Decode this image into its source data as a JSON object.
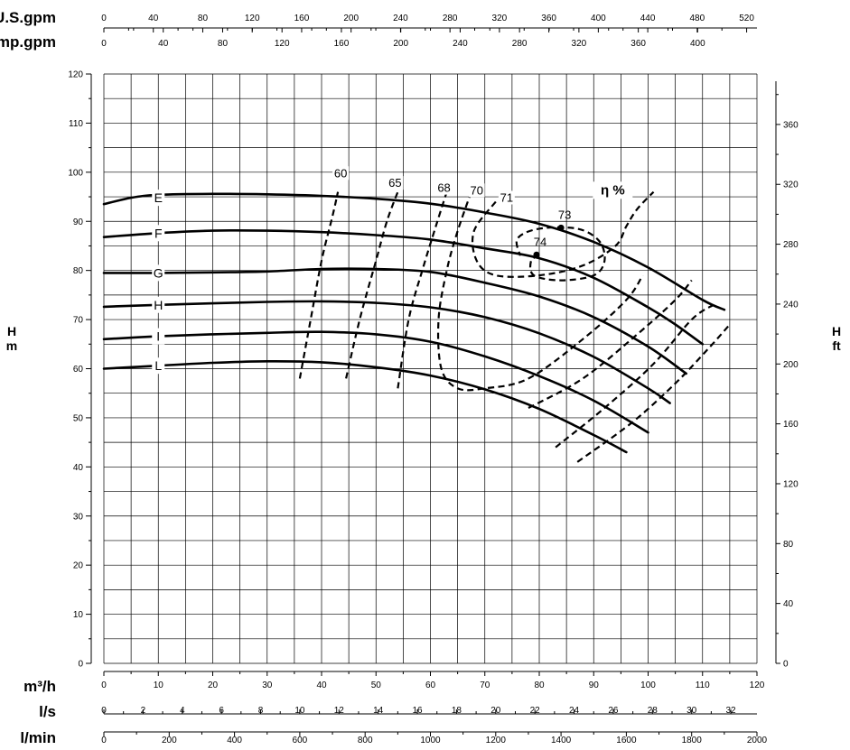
{
  "chart_data": {
    "type": "line",
    "top_axes": [
      {
        "label": "U.S.gpm",
        "ticks": [
          0,
          40,
          80,
          120,
          160,
          200,
          240,
          280,
          320,
          360,
          400,
          440,
          480,
          520
        ],
        "per_m3h": 4.4029
      },
      {
        "label": "Imp.gpm",
        "ticks": [
          0,
          40,
          80,
          120,
          160,
          200,
          240,
          280,
          320,
          360,
          400
        ],
        "per_m3h": 3.6662
      }
    ],
    "x_axes": [
      {
        "label": "m³/h",
        "ticks": [
          0,
          10,
          20,
          30,
          40,
          50,
          60,
          70,
          80,
          90,
          100,
          110,
          120
        ],
        "per_m3h": 1
      },
      {
        "label": "l/s",
        "ticks": [
          0,
          2,
          4,
          6,
          8,
          10,
          12,
          14,
          16,
          18,
          20,
          22,
          24,
          26,
          28,
          30,
          32
        ],
        "per_m3h": 0.27778
      },
      {
        "label": "l/min",
        "ticks": [
          0,
          200,
          400,
          600,
          800,
          1000,
          1200,
          1400,
          1600,
          1800,
          2000
        ],
        "per_m3h": 16.6667
      }
    ],
    "y_left": {
      "label": [
        "H",
        "m"
      ],
      "ticks": [
        0,
        10,
        20,
        30,
        40,
        50,
        60,
        70,
        80,
        90,
        100,
        110,
        120
      ],
      "ylim": [
        0,
        120
      ]
    },
    "y_right": {
      "label": [
        "H",
        "ft"
      ],
      "ticks": [
        0,
        40,
        80,
        120,
        160,
        200,
        240,
        280,
        320,
        360
      ]
    },
    "xlim": [
      0,
      120
    ],
    "series": [
      {
        "name": "E",
        "points": [
          [
            0,
            93.5
          ],
          [
            5,
            94.8
          ],
          [
            10,
            95.4
          ],
          [
            20,
            95.6
          ],
          [
            30,
            95.5
          ],
          [
            40,
            95.2
          ],
          [
            50,
            94.6
          ],
          [
            60,
            93.6
          ],
          [
            70,
            91.8
          ],
          [
            80,
            89.5
          ],
          [
            90,
            85.8
          ],
          [
            100,
            80.6
          ],
          [
            110,
            74
          ],
          [
            114,
            72
          ]
        ]
      },
      {
        "name": "F",
        "points": [
          [
            0,
            86.8
          ],
          [
            10,
            87.6
          ],
          [
            20,
            88.1
          ],
          [
            30,
            88.1
          ],
          [
            40,
            87.8
          ],
          [
            50,
            87.2
          ],
          [
            60,
            86.3
          ],
          [
            70,
            84.5
          ],
          [
            80,
            82.5
          ],
          [
            90,
            78.5
          ],
          [
            100,
            72.5
          ],
          [
            105,
            69
          ],
          [
            110,
            65
          ]
        ]
      },
      {
        "name": "G",
        "points": [
          [
            0,
            79.5
          ],
          [
            10,
            79.5
          ],
          [
            20,
            79.6
          ],
          [
            30,
            79.8
          ],
          [
            40,
            80.3
          ],
          [
            50,
            80.3
          ],
          [
            60,
            79.7
          ],
          [
            70,
            77.5
          ],
          [
            80,
            74.7
          ],
          [
            90,
            70.5
          ],
          [
            100,
            64.5
          ],
          [
            107,
            59
          ]
        ]
      },
      {
        "name": "H",
        "points": [
          [
            0,
            72.6
          ],
          [
            10,
            73
          ],
          [
            20,
            73.3
          ],
          [
            30,
            73.6
          ],
          [
            40,
            73.7
          ],
          [
            50,
            73.4
          ],
          [
            60,
            72.5
          ],
          [
            70,
            70.5
          ],
          [
            80,
            67.2
          ],
          [
            90,
            62.4
          ],
          [
            100,
            56
          ],
          [
            104,
            53
          ]
        ]
      },
      {
        "name": "I",
        "points": [
          [
            0,
            66
          ],
          [
            10,
            66.6
          ],
          [
            20,
            67
          ],
          [
            30,
            67.3
          ],
          [
            40,
            67.5
          ],
          [
            50,
            67
          ],
          [
            60,
            65.5
          ],
          [
            70,
            62.5
          ],
          [
            80,
            58.5
          ],
          [
            90,
            53.5
          ],
          [
            100,
            47
          ]
        ]
      },
      {
        "name": "L",
        "points": [
          [
            0,
            60
          ],
          [
            10,
            60.6
          ],
          [
            20,
            61.2
          ],
          [
            30,
            61.5
          ],
          [
            40,
            61.3
          ],
          [
            50,
            60.3
          ],
          [
            60,
            58.6
          ],
          [
            70,
            55.8
          ],
          [
            80,
            51.8
          ],
          [
            90,
            46.5
          ],
          [
            96,
            43
          ]
        ]
      }
    ],
    "efficiency_label": "η %",
    "efficiency": [
      {
        "value": "60",
        "label_at": [
          43.5,
          99
        ],
        "points": [
          [
            36,
            58
          ],
          [
            38,
            70
          ],
          [
            40,
            82
          ],
          [
            42,
            91
          ],
          [
            43,
            96
          ]
        ]
      },
      {
        "value": "65",
        "label_at": [
          53.5,
          97
        ],
        "points": [
          [
            44.5,
            58
          ],
          [
            47,
            70
          ],
          [
            50,
            82
          ],
          [
            52,
            90
          ],
          [
            54,
            96
          ]
        ]
      },
      {
        "value": "68",
        "label_at": [
          62.5,
          96
        ],
        "points": [
          [
            54,
            56
          ],
          [
            56,
            70
          ],
          [
            58.5,
            80
          ],
          [
            61,
            89
          ],
          [
            63,
            96
          ]
        ]
      },
      {
        "value": "70",
        "label_at": [
          68.5,
          95.5
        ],
        "points": [
          [
            67.5,
            96
          ],
          [
            65,
            88
          ],
          [
            63,
            80
          ],
          [
            61.5,
            70
          ],
          [
            62,
            60
          ],
          [
            65,
            56
          ],
          [
            70,
            56
          ],
          [
            78,
            58
          ],
          [
            88,
            66
          ],
          [
            96,
            74
          ],
          [
            99,
            79
          ]
        ]
      },
      {
        "value": "71",
        "label_at": [
          74,
          94
        ],
        "points": [
          [
            72,
            94
          ],
          [
            68,
            88
          ],
          [
            68.5,
            82
          ],
          [
            72,
            79
          ],
          [
            80,
            79
          ],
          [
            88,
            81
          ],
          [
            94,
            85
          ],
          [
            96,
            89
          ],
          [
            98,
            92.5
          ],
          [
            101,
            96
          ]
        ]
      }
    ],
    "extra_dashed": [
      {
        "points": [
          [
            78,
            52
          ],
          [
            88,
            58
          ],
          [
            98,
            67
          ],
          [
            105,
            74
          ],
          [
            108,
            78
          ]
        ]
      },
      {
        "points": [
          [
            83,
            44
          ],
          [
            92,
            52
          ],
          [
            101,
            61
          ],
          [
            108,
            70
          ],
          [
            112,
            73
          ]
        ]
      },
      {
        "points": [
          [
            87,
            41
          ],
          [
            97,
            49
          ],
          [
            105,
            57
          ],
          [
            111,
            64
          ],
          [
            115,
            69
          ]
        ]
      }
    ],
    "efficiency_loops": [
      {
        "points": [
          [
            80,
            83
          ],
          [
            78.5,
            82
          ],
          [
            79,
            79
          ],
          [
            84,
            78
          ],
          [
            90,
            79
          ],
          [
            92,
            82
          ],
          [
            91,
            86
          ],
          [
            87,
            88.5
          ],
          [
            80,
            88.5
          ],
          [
            76,
            86.5
          ],
          [
            76.5,
            83
          ]
        ]
      }
    ],
    "markers": [
      {
        "label": "73",
        "x": 84,
        "y": 88.7
      },
      {
        "label": "74",
        "x": 79.5,
        "y": 83.2
      }
    ]
  }
}
